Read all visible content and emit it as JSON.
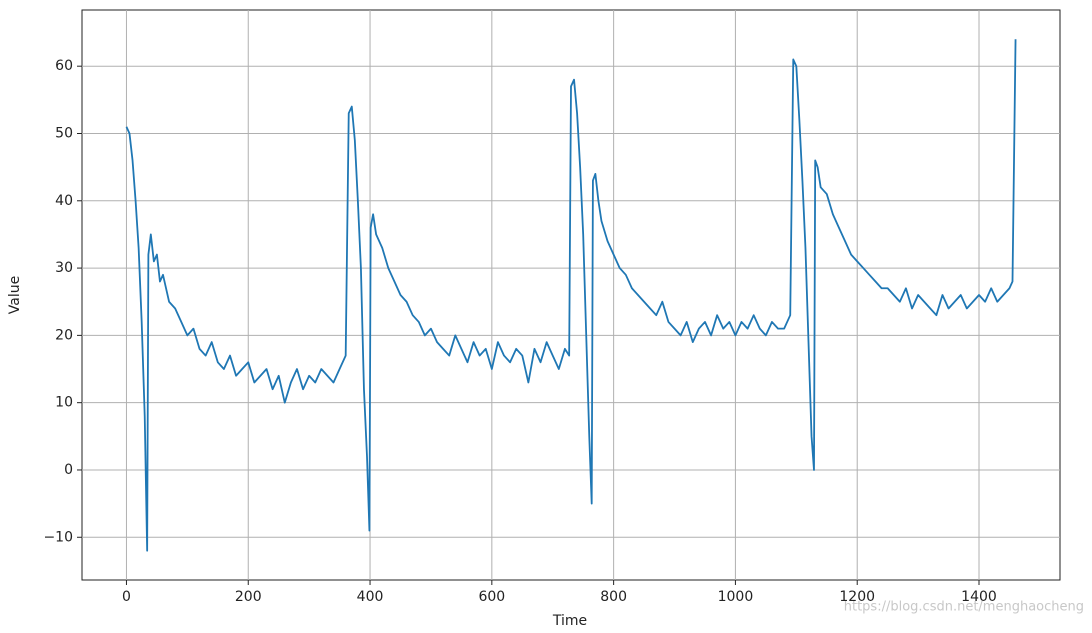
{
  "chart_data": {
    "type": "line",
    "xlabel": "Time",
    "ylabel": "Value",
    "watermark": "https://blog.csdn.net/menghaocheng",
    "xlim": [
      -73,
      1533
    ],
    "ylim": [
      -16.35,
      68.35
    ],
    "xticks": [
      0,
      200,
      400,
      600,
      800,
      1000,
      1200,
      1400
    ],
    "yticks": [
      {
        "value": -10,
        "label": "−10"
      },
      0,
      10,
      20,
      30,
      40,
      50,
      60
    ],
    "grid": true,
    "x": [
      0,
      5,
      10,
      15,
      20,
      25,
      30,
      34,
      36,
      40,
      45,
      50,
      55,
      60,
      70,
      80,
      90,
      100,
      110,
      120,
      130,
      140,
      150,
      160,
      170,
      180,
      190,
      200,
      210,
      220,
      230,
      240,
      250,
      260,
      270,
      280,
      290,
      300,
      310,
      320,
      330,
      340,
      350,
      360,
      365,
      370,
      375,
      380,
      385,
      390,
      395,
      399,
      401,
      405,
      410,
      420,
      430,
      440,
      450,
      460,
      470,
      480,
      490,
      500,
      510,
      520,
      530,
      540,
      550,
      560,
      570,
      580,
      590,
      600,
      610,
      620,
      630,
      640,
      650,
      660,
      670,
      680,
      690,
      700,
      710,
      720,
      727,
      730,
      735,
      740,
      745,
      750,
      755,
      760,
      764,
      766,
      770,
      775,
      780,
      790,
      800,
      810,
      820,
      830,
      840,
      850,
      860,
      870,
      880,
      890,
      900,
      910,
      920,
      930,
      940,
      950,
      960,
      970,
      980,
      990,
      1000,
      1010,
      1020,
      1030,
      1040,
      1050,
      1060,
      1070,
      1080,
      1090,
      1095,
      1100,
      1105,
      1110,
      1115,
      1120,
      1125,
      1129,
      1131,
      1135,
      1140,
      1150,
      1160,
      1170,
      1180,
      1190,
      1200,
      1210,
      1220,
      1230,
      1240,
      1250,
      1260,
      1270,
      1280,
      1290,
      1300,
      1310,
      1320,
      1330,
      1340,
      1350,
      1360,
      1370,
      1380,
      1390,
      1400,
      1410,
      1420,
      1430,
      1440,
      1450,
      1455,
      1460
    ],
    "series": [
      {
        "name": "Value",
        "color": "#1f77b4",
        "values": [
          51,
          50,
          46,
          40,
          33,
          22,
          8,
          -12,
          32,
          35,
          31,
          32,
          28,
          29,
          25,
          24,
          22,
          20,
          21,
          18,
          17,
          19,
          16,
          15,
          17,
          14,
          15,
          16,
          13,
          14,
          15,
          12,
          14,
          10,
          13,
          15,
          12,
          14,
          13,
          15,
          14,
          13,
          15,
          17,
          53,
          54,
          49,
          40,
          30,
          12,
          2,
          -9,
          36,
          38,
          35,
          33,
          30,
          28,
          26,
          25,
          23,
          22,
          20,
          21,
          19,
          18,
          17,
          20,
          18,
          16,
          19,
          17,
          18,
          15,
          19,
          17,
          16,
          18,
          17,
          13,
          18,
          16,
          19,
          17,
          15,
          18,
          17,
          57,
          58,
          53,
          45,
          35,
          20,
          5,
          -5,
          43,
          44,
          40,
          37,
          34,
          32,
          30,
          29,
          27,
          26,
          25,
          24,
          23,
          25,
          22,
          21,
          20,
          22,
          19,
          21,
          22,
          20,
          23,
          21,
          22,
          20,
          22,
          21,
          23,
          21,
          20,
          22,
          21,
          21,
          23,
          61,
          60,
          52,
          43,
          33,
          19,
          5,
          0,
          46,
          45,
          42,
          41,
          38,
          36,
          34,
          32,
          31,
          30,
          29,
          28,
          27,
          27,
          26,
          25,
          27,
          24,
          26,
          25,
          24,
          23,
          26,
          24,
          25,
          26,
          24,
          25,
          26,
          25,
          27,
          25,
          26,
          27,
          28,
          64
        ]
      }
    ]
  }
}
